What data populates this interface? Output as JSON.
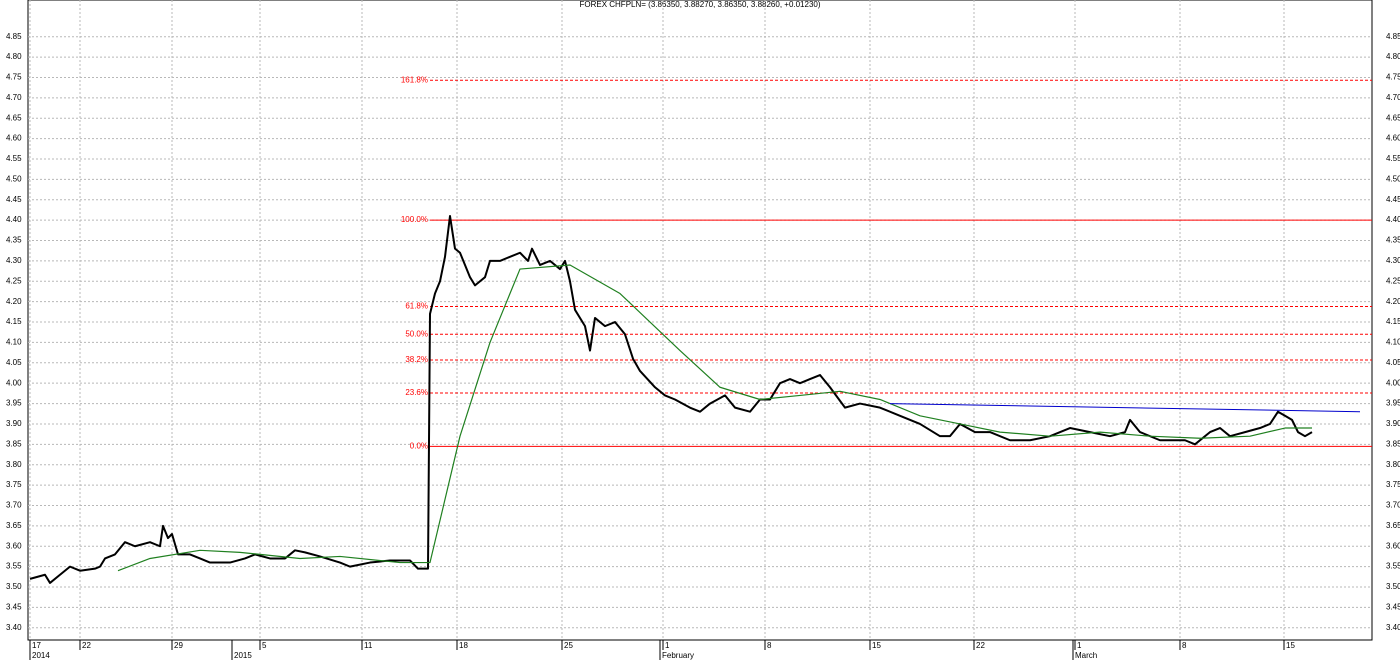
{
  "chart_data": {
    "type": "line",
    "title": "FOREX CHFPLN= (3.86350, 3.88270, 3.86350, 3.88260, +0.01230)",
    "xlim": [
      -0.2,
      134.2
    ],
    "ylim": [
      3.37,
      4.94
    ],
    "grid": true,
    "xticks": [
      {
        "value": 0,
        "label": "17"
      },
      {
        "value": 5,
        "label": "22"
      },
      {
        "value": 14.2,
        "label": "29"
      },
      {
        "value": 23,
        "label": "5"
      },
      {
        "value": 33.2,
        "label": "11"
      },
      {
        "value": 42.7,
        "label": "18"
      },
      {
        "value": 53.2,
        "label": "25"
      },
      {
        "value": 63.3,
        "label": "1"
      },
      {
        "value": 73.5,
        "label": "8"
      },
      {
        "value": 84,
        "label": "15"
      },
      {
        "value": 94.4,
        "label": "22"
      },
      {
        "value": 104.5,
        "label": "1"
      },
      {
        "value": 115,
        "label": "8"
      },
      {
        "value": 125.4,
        "label": "15"
      }
    ],
    "x_period_labels": [
      {
        "value": 0,
        "label": "2014"
      },
      {
        "value": 20.2,
        "label": "2015"
      },
      {
        "value": 63,
        "label": "February"
      },
      {
        "value": 104.3,
        "label": "March"
      }
    ],
    "yticks": [
      {
        "value": 3.4,
        "label": "3.40"
      },
      3.45,
      {
        "value": 3.5,
        "label": "3.50"
      },
      3.55,
      {
        "value": 3.6,
        "label": "3.60"
      },
      3.65,
      {
        "value": 3.7,
        "label": "3.70"
      },
      3.75,
      {
        "value": 3.8,
        "label": "3.80"
      },
      3.85,
      {
        "value": 3.9,
        "label": "3.90"
      },
      3.95,
      {
        "value": 4,
        "label": "4.00"
      },
      4.05,
      {
        "value": 4.1,
        "label": "4.10"
      },
      4.15,
      {
        "value": 4.2,
        "label": "4.20"
      },
      4.25,
      {
        "value": 4.3,
        "label": "4.30"
      },
      4.35,
      {
        "value": 4.4,
        "label": "4.40"
      },
      4.45,
      {
        "value": 4.5,
        "label": "4.50"
      },
      4.55,
      {
        "value": 4.6,
        "label": "4.60"
      },
      4.65,
      {
        "value": 4.7,
        "label": "4.70"
      },
      4.75,
      {
        "value": 4.8,
        "label": "4.80"
      },
      4.85
    ],
    "series": [
      {
        "color": "#000000",
        "x": [
          0,
          1.5,
          2,
          3,
          4,
          5,
          6.5,
          7,
          7.5,
          8.5,
          9.5,
          10.5,
          12,
          13,
          13.3,
          13.8,
          14.2,
          14.8,
          16,
          17,
          18,
          20,
          21.5,
          22.5,
          24,
          25.5,
          26.5,
          27.5,
          29,
          31,
          32,
          34,
          36,
          38,
          38.8,
          39.8,
          40,
          40.5,
          41,
          41.5,
          42,
          42.5,
          43,
          44,
          44.5,
          45.5,
          46,
          47,
          48,
          49,
          49.8,
          50.2,
          51,
          52,
          53,
          53.5,
          54,
          54.5,
          55.5,
          56,
          56.5,
          57.5,
          58.5,
          59.5,
          60.3,
          61,
          62.5,
          63.5,
          64.5,
          66,
          67,
          68,
          69.5,
          70.5,
          72,
          73,
          74,
          75,
          76,
          77,
          78,
          79,
          80,
          81.5,
          83,
          85,
          87,
          89,
          91,
          92,
          93,
          94.5,
          96,
          98,
          100,
          102,
          104,
          106,
          108,
          109.5,
          110,
          111,
          113,
          114.5,
          115.5,
          116.5,
          118,
          119,
          120,
          121.5,
          123,
          124,
          124.8,
          125.5,
          126.2,
          126.8,
          127.5,
          128.2
        ],
        "values": [
          3.52,
          3.53,
          3.51,
          3.53,
          3.55,
          3.54,
          3.545,
          3.55,
          3.57,
          3.58,
          3.61,
          3.6,
          3.61,
          3.6,
          3.65,
          3.62,
          3.63,
          3.58,
          3.58,
          3.57,
          3.56,
          3.56,
          3.57,
          3.58,
          3.57,
          3.57,
          3.59,
          3.585,
          3.575,
          3.56,
          3.55,
          3.56,
          3.565,
          3.565,
          3.545,
          3.545,
          4.17,
          4.22,
          4.25,
          4.31,
          4.41,
          4.33,
          4.32,
          4.26,
          4.24,
          4.26,
          4.3,
          4.3,
          4.31,
          4.32,
          4.3,
          4.33,
          4.29,
          4.3,
          4.28,
          4.3,
          4.25,
          4.18,
          4.14,
          4.08,
          4.16,
          4.14,
          4.15,
          4.12,
          4.06,
          4.03,
          3.99,
          3.97,
          3.96,
          3.94,
          3.93,
          3.95,
          3.97,
          3.94,
          3.93,
          3.96,
          3.96,
          4.0,
          4.01,
          4.0,
          4.01,
          4.02,
          3.99,
          3.94,
          3.95,
          3.94,
          3.92,
          3.9,
          3.87,
          3.87,
          3.9,
          3.88,
          3.88,
          3.86,
          3.86,
          3.87,
          3.89,
          3.88,
          3.87,
          3.88,
          3.91,
          3.88,
          3.86,
          3.86,
          3.86,
          3.85,
          3.88,
          3.89,
          3.87,
          3.88,
          3.89,
          3.9,
          3.93,
          3.92,
          3.91,
          3.88,
          3.87,
          3.88
        ]
      },
      {
        "color": "#208020",
        "x": [
          8.8,
          12,
          17,
          21,
          27,
          31,
          37,
          40,
          43,
          46,
          49,
          54,
          59,
          65,
          69,
          73,
          77,
          81,
          85,
          89,
          93,
          97,
          102,
          107,
          112,
          117,
          122,
          125.5,
          128.2
        ],
        "values": [
          3.54,
          3.57,
          3.59,
          3.585,
          3.57,
          3.575,
          3.56,
          3.56,
          3.87,
          4.1,
          4.28,
          4.29,
          4.22,
          4.08,
          3.99,
          3.96,
          3.97,
          3.98,
          3.96,
          3.92,
          3.9,
          3.88,
          3.87,
          3.88,
          3.87,
          3.865,
          3.87,
          3.89,
          3.89
        ]
      }
    ],
    "fib_color": "#ff0000",
    "fib_start": 40,
    "fib_levels": [
      {
        "label": "161.8%",
        "value": 4.743,
        "style": "dashed"
      },
      {
        "label": "100.0%",
        "value": 4.4,
        "style": "solid"
      },
      {
        "label": "61.8%",
        "value": 4.188,
        "style": "dashed"
      },
      {
        "label": "50.0%",
        "value": 4.12,
        "style": "dashed"
      },
      {
        "label": "38.2%",
        "value": 4.057,
        "style": "dashed"
      },
      {
        "label": "23.6%",
        "value": 3.976,
        "style": "dashed"
      },
      {
        "label": "0.0%",
        "value": 3.845,
        "style": "solid"
      }
    ],
    "trendline": {
      "color": "#0000cc",
      "x": [
        86,
        133
      ],
      "values": [
        3.95,
        3.93
      ]
    }
  }
}
